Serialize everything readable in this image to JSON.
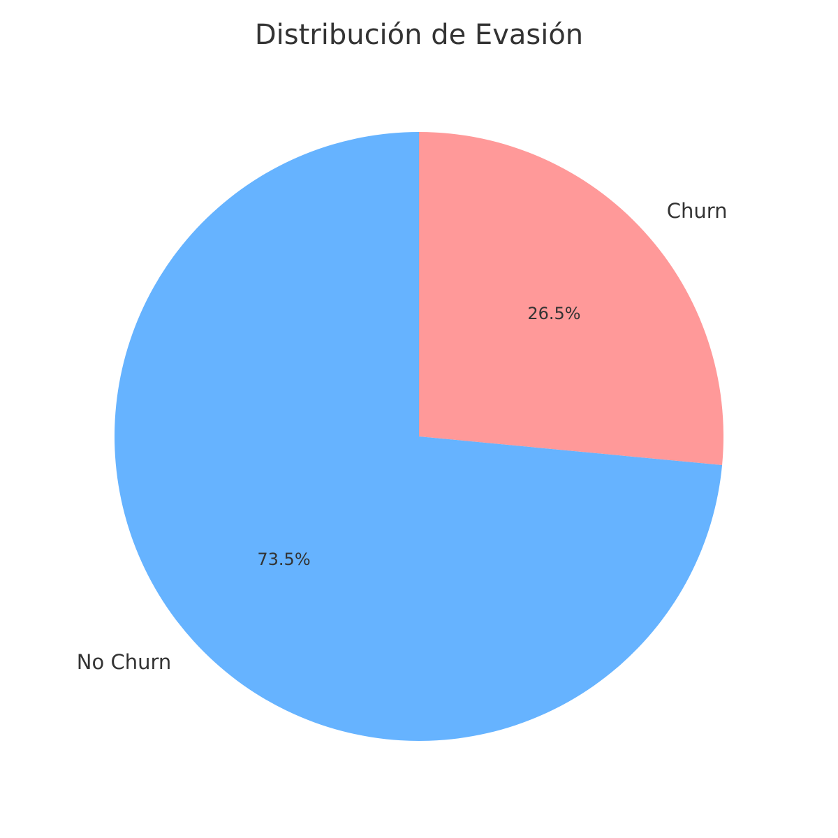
{
  "chart_data": {
    "type": "pie",
    "title": "Distribución de Evasión",
    "categories": [
      "Churn",
      "No Churn"
    ],
    "values": [
      26.5,
      73.5
    ],
    "labels": [
      "26.5%",
      "73.5%"
    ],
    "colors": [
      "#ff9999",
      "#66b3ff"
    ],
    "start_angle_deg": 90,
    "direction": "clockwise",
    "legend": "none"
  }
}
